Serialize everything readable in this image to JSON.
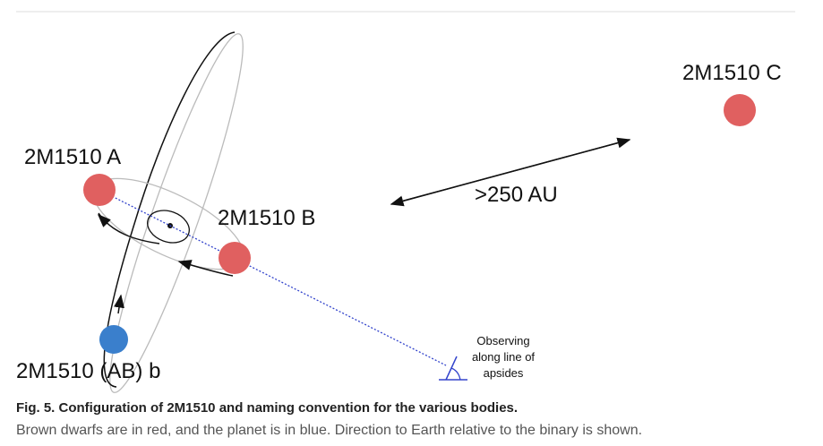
{
  "figure": {
    "labels": {
      "c": "2M1510 C",
      "a": "2M1510 A",
      "b": "2M1510 B",
      "planet": "2M1510 (AB) b",
      "distance": ">250 AU",
      "observer": [
        "Observing",
        "along line of",
        "apsides"
      ]
    },
    "caption": {
      "number": "Fig. 5.",
      "title": "Configuration of 2M1510 and naming convention for the various bodies.",
      "text": "Brown dwarfs are in red, and the planet is in blue. Direction to Earth relative to the binary is shown."
    }
  }
}
